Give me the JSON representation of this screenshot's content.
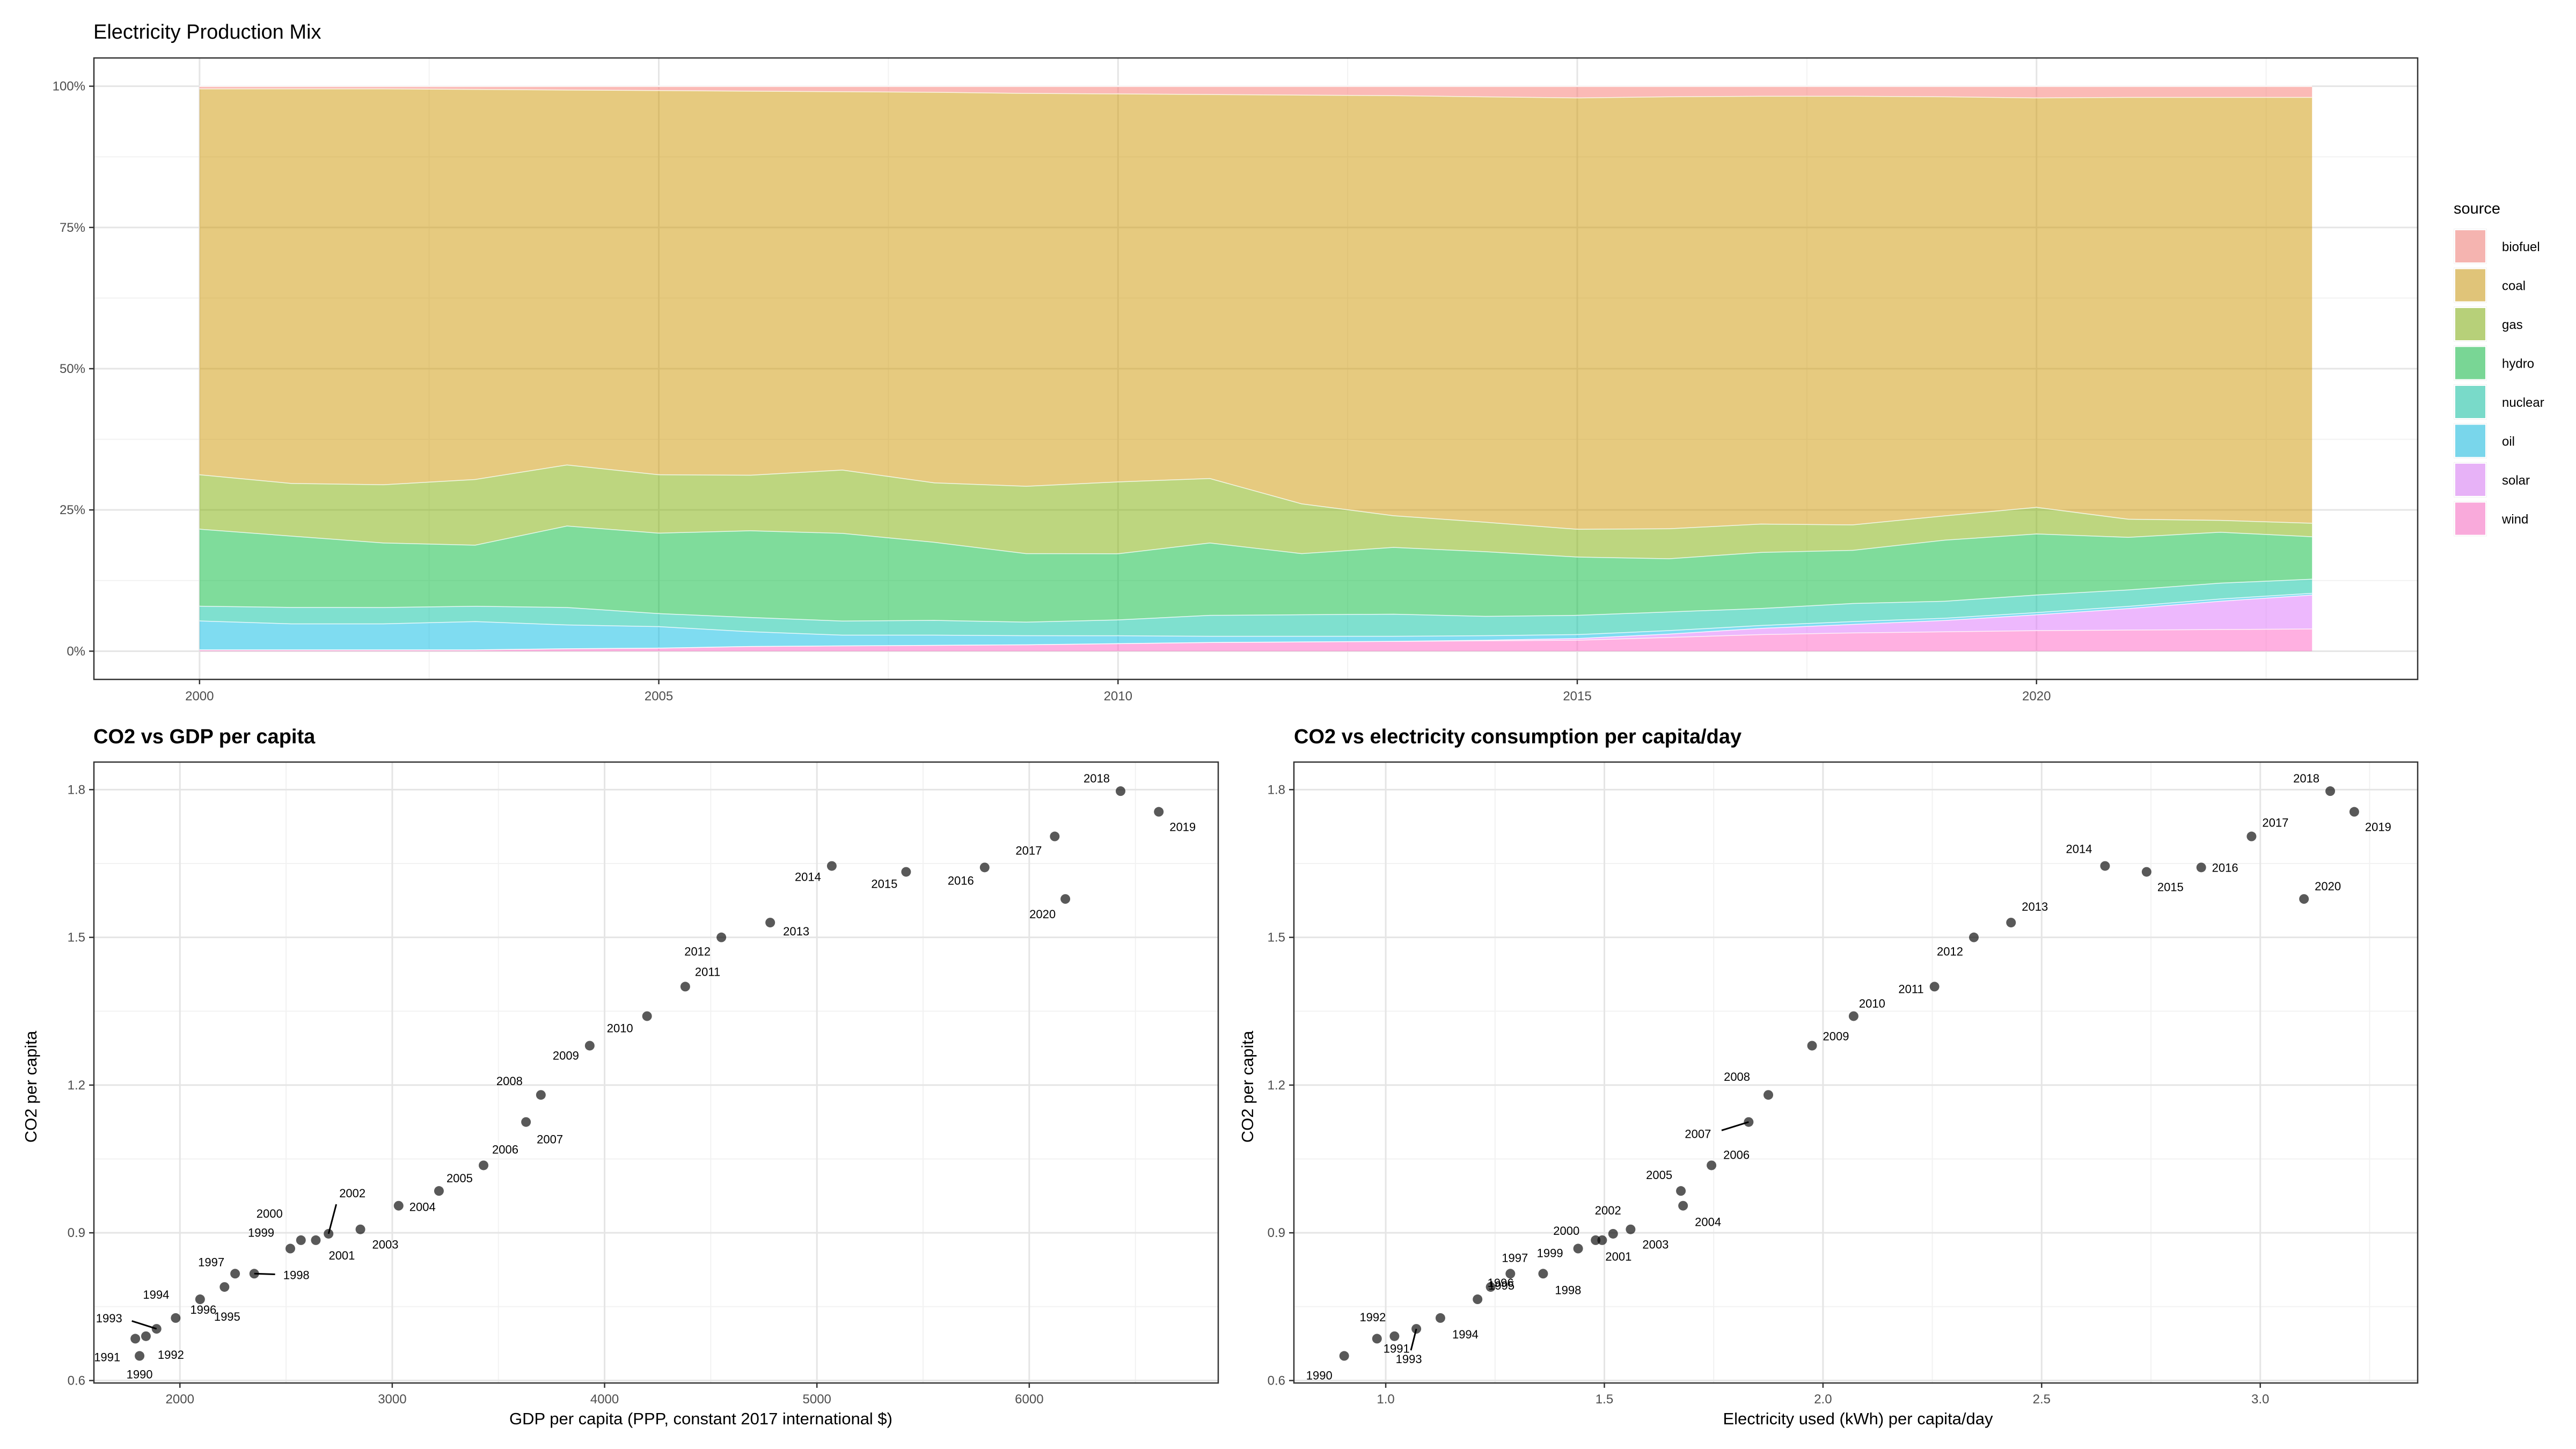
{
  "chart_data": [
    {
      "type": "area",
      "title": "Electricity Production Mix",
      "xlabel": "",
      "ylabel": "",
      "stacked": true,
      "normalized": true,
      "x": [
        2000,
        2001,
        2002,
        2003,
        2004,
        2005,
        2006,
        2007,
        2008,
        2009,
        2010,
        2011,
        2012,
        2013,
        2014,
        2015,
        2016,
        2017,
        2018,
        2019,
        2020,
        2021,
        2022,
        2023
      ],
      "xlim": [
        1998.85,
        2024.15
      ],
      "x_ticks": [
        2000,
        2005,
        2010,
        2015,
        2020
      ],
      "x_tick_labels": [
        "2000",
        "2005",
        "2010",
        "2015",
        "2020"
      ],
      "ylim": [
        -0.05,
        1.05
      ],
      "y_ticks": [
        0,
        0.25,
        0.5,
        0.75,
        1.0
      ],
      "y_tick_labels": [
        "0%",
        "25%",
        "50%",
        "75%",
        "100%"
      ],
      "grid": true,
      "legend_title": "source",
      "legend_position": "right",
      "series": [
        {
          "name": "wind",
          "color": "#FF61C3",
          "values": [
            0.3,
            0.3,
            0.3,
            0.3,
            0.5,
            0.6,
            0.9,
            1.0,
            1.1,
            1.2,
            1.4,
            1.6,
            1.7,
            1.8,
            1.9,
            2.0,
            2.5,
            3.0,
            3.3,
            3.5,
            3.7,
            3.8,
            3.9,
            4.0
          ]
        },
        {
          "name": "solar",
          "color": "#DB72FB",
          "values": [
            0,
            0,
            0,
            0,
            0,
            0,
            0,
            0,
            0,
            0,
            0,
            0,
            0,
            0,
            0.1,
            0.3,
            0.6,
            1.1,
            1.5,
            2.0,
            2.8,
            3.8,
            5.0,
            6.0
          ]
        },
        {
          "name": "oil",
          "color": "#00B9E3",
          "values": [
            5.1,
            4.6,
            4.6,
            5.0,
            4.2,
            3.8,
            2.6,
            1.9,
            1.8,
            1.6,
            1.4,
            1.1,
            1.0,
            0.9,
            0.8,
            0.7,
            0.6,
            0.5,
            0.5,
            0.4,
            0.4,
            0.4,
            0.4,
            0.3
          ]
        },
        {
          "name": "nuclear",
          "color": "#00C19F",
          "values": [
            2.6,
            2.9,
            2.9,
            2.7,
            3.1,
            2.3,
            2.5,
            2.5,
            2.6,
            2.4,
            2.8,
            3.7,
            3.8,
            3.9,
            3.4,
            3.4,
            3.3,
            3.0,
            3.2,
            3.0,
            3.1,
            2.9,
            2.8,
            2.5
          ]
        },
        {
          "name": "hydro",
          "color": "#00BA38",
          "values": [
            13.6,
            12.6,
            11.4,
            10.8,
            14.4,
            14.2,
            15.3,
            15.5,
            13.8,
            12.1,
            11.7,
            12.8,
            10.8,
            11.8,
            11.4,
            10.3,
            9.4,
            9.9,
            9.4,
            10.8,
            10.8,
            9.3,
            9.0,
            7.5
          ]
        },
        {
          "name": "gas",
          "color": "#7CAE00",
          "values": [
            9.6,
            9.3,
            10.3,
            11.6,
            10.8,
            10.3,
            9.8,
            11.2,
            10.5,
            11.9,
            12.7,
            11.4,
            8.8,
            5.6,
            5.2,
            4.9,
            5.3,
            5.0,
            4.5,
            4.3,
            4.7,
            3.2,
            2.1,
            2.4
          ]
        },
        {
          "name": "coal",
          "color": "#CD9600",
          "values": [
            68.1,
            69.7,
            70.0,
            68.9,
            66.3,
            67.8,
            67.7,
            66.9,
            69.0,
            69.4,
            68.6,
            67.9,
            72.2,
            74.2,
            75.0,
            76.2,
            76.3,
            75.5,
            75.8,
            74.1,
            72.4,
            74.6,
            74.8,
            75.3
          ]
        },
        {
          "name": "biofuel",
          "color": "#F8766D",
          "values": [
            0.4,
            0.4,
            0.4,
            0.5,
            0.6,
            0.7,
            0.8,
            0.9,
            1.0,
            1.2,
            1.3,
            1.4,
            1.5,
            1.6,
            1.8,
            2.0,
            1.8,
            1.7,
            1.7,
            1.8,
            2.0,
            1.9,
            1.9,
            1.9
          ]
        }
      ]
    },
    {
      "type": "scatter",
      "title": "CO2 vs GDP per capita",
      "xlabel": "GDP per capita (PPP, constant 2017 international $)",
      "ylabel": "CO2 per capita",
      "xlim": [
        1595,
        6890
      ],
      "ylim": [
        0.595,
        1.856
      ],
      "x_ticks": [
        2000,
        3000,
        4000,
        5000,
        6000
      ],
      "x_tick_labels": [
        "2000",
        "3000",
        "4000",
        "5000",
        "6000"
      ],
      "y_ticks": [
        0.6,
        0.9,
        1.2,
        1.5,
        1.8
      ],
      "y_tick_labels": [
        "0.6",
        "0.9",
        "1.2",
        "1.5",
        "1.8"
      ],
      "grid": true,
      "points": [
        {
          "label": "1990",
          "x": 1810,
          "y": 0.65
        },
        {
          "label": "1991",
          "x": 1790,
          "y": 0.685
        },
        {
          "label": "1992",
          "x": 1840,
          "y": 0.69
        },
        {
          "label": "1993",
          "x": 1890,
          "y": 0.705
        },
        {
          "label": "1994",
          "x": 1980,
          "y": 0.727
        },
        {
          "label": "1995",
          "x": 2095,
          "y": 0.765
        },
        {
          "label": "1996",
          "x": 2210,
          "y": 0.79
        },
        {
          "label": "1997",
          "x": 2260,
          "y": 0.817
        },
        {
          "label": "1998",
          "x": 2350,
          "y": 0.817
        },
        {
          "label": "1999",
          "x": 2520,
          "y": 0.868
        },
        {
          "label": "2000",
          "x": 2570,
          "y": 0.885
        },
        {
          "label": "2001",
          "x": 2640,
          "y": 0.885
        },
        {
          "label": "2002",
          "x": 2700,
          "y": 0.898
        },
        {
          "label": "2003",
          "x": 2850,
          "y": 0.907
        },
        {
          "label": "2004",
          "x": 3030,
          "y": 0.955
        },
        {
          "label": "2005",
          "x": 3220,
          "y": 0.985
        },
        {
          "label": "2006",
          "x": 3430,
          "y": 1.037
        },
        {
          "label": "2007",
          "x": 3630,
          "y": 1.125
        },
        {
          "label": "2008",
          "x": 3700,
          "y": 1.18
        },
        {
          "label": "2009",
          "x": 3930,
          "y": 1.28
        },
        {
          "label": "2010",
          "x": 4200,
          "y": 1.34
        },
        {
          "label": "2011",
          "x": 4380,
          "y": 1.4
        },
        {
          "label": "2012",
          "x": 4550,
          "y": 1.5
        },
        {
          "label": "2013",
          "x": 4780,
          "y": 1.53
        },
        {
          "label": "2014",
          "x": 5070,
          "y": 1.645
        },
        {
          "label": "2015",
          "x": 5420,
          "y": 1.633
        },
        {
          "label": "2016",
          "x": 5790,
          "y": 1.642
        },
        {
          "label": "2017",
          "x": 6120,
          "y": 1.705
        },
        {
          "label": "2018",
          "x": 6430,
          "y": 1.797
        },
        {
          "label": "2019",
          "x": 6610,
          "y": 1.755
        },
        {
          "label": "2020",
          "x": 6170,
          "y": 1.578
        }
      ]
    },
    {
      "type": "scatter",
      "title": "CO2 vs electricity consumption per capita/day",
      "xlabel": "Electricity used (kWh) per capita/day",
      "ylabel": "CO2 per capita",
      "xlim": [
        0.79,
        3.36
      ],
      "ylim": [
        0.595,
        1.856
      ],
      "x_ticks": [
        1.0,
        1.5,
        2.0,
        2.5,
        3.0
      ],
      "x_tick_labels": [
        "1.0",
        "1.5",
        "2.0",
        "2.5",
        "3.0"
      ],
      "y_ticks": [
        0.6,
        0.9,
        1.2,
        1.5,
        1.8
      ],
      "y_tick_labels": [
        "0.6",
        "0.9",
        "1.2",
        "1.5",
        "1.8"
      ],
      "grid": true,
      "points": [
        {
          "label": "1990",
          "x": 0.905,
          "y": 0.65
        },
        {
          "label": "1991",
          "x": 0.98,
          "y": 0.685
        },
        {
          "label": "1992",
          "x": 1.02,
          "y": 0.69
        },
        {
          "label": "1993",
          "x": 1.07,
          "y": 0.705
        },
        {
          "label": "1994",
          "x": 1.125,
          "y": 0.727
        },
        {
          "label": "1995",
          "x": 1.21,
          "y": 0.765
        },
        {
          "label": "1996",
          "x": 1.24,
          "y": 0.79
        },
        {
          "label": "1997",
          "x": 1.285,
          "y": 0.817
        },
        {
          "label": "1998",
          "x": 1.36,
          "y": 0.817
        },
        {
          "label": "1999",
          "x": 1.44,
          "y": 0.868
        },
        {
          "label": "2000",
          "x": 1.48,
          "y": 0.885
        },
        {
          "label": "2001",
          "x": 1.495,
          "y": 0.885
        },
        {
          "label": "2002",
          "x": 1.52,
          "y": 0.898
        },
        {
          "label": "2003",
          "x": 1.56,
          "y": 0.907
        },
        {
          "label": "2004",
          "x": 1.68,
          "y": 0.955
        },
        {
          "label": "2005",
          "x": 1.675,
          "y": 0.985
        },
        {
          "label": "2006",
          "x": 1.745,
          "y": 1.037
        },
        {
          "label": "2007",
          "x": 1.83,
          "y": 1.125
        },
        {
          "label": "2008",
          "x": 1.875,
          "y": 1.18
        },
        {
          "label": "2009",
          "x": 1.975,
          "y": 1.28
        },
        {
          "label": "2010",
          "x": 2.07,
          "y": 1.34
        },
        {
          "label": "2011",
          "x": 2.255,
          "y": 1.4
        },
        {
          "label": "2012",
          "x": 2.345,
          "y": 1.5
        },
        {
          "label": "2013",
          "x": 2.43,
          "y": 1.53
        },
        {
          "label": "2014",
          "x": 2.645,
          "y": 1.645
        },
        {
          "label": "2015",
          "x": 2.74,
          "y": 1.633
        },
        {
          "label": "2016",
          "x": 2.865,
          "y": 1.642
        },
        {
          "label": "2017",
          "x": 2.98,
          "y": 1.705
        },
        {
          "label": "2018",
          "x": 3.16,
          "y": 1.797
        },
        {
          "label": "2019",
          "x": 3.215,
          "y": 1.755
        },
        {
          "label": "2020",
          "x": 3.1,
          "y": 1.578
        }
      ]
    }
  ]
}
